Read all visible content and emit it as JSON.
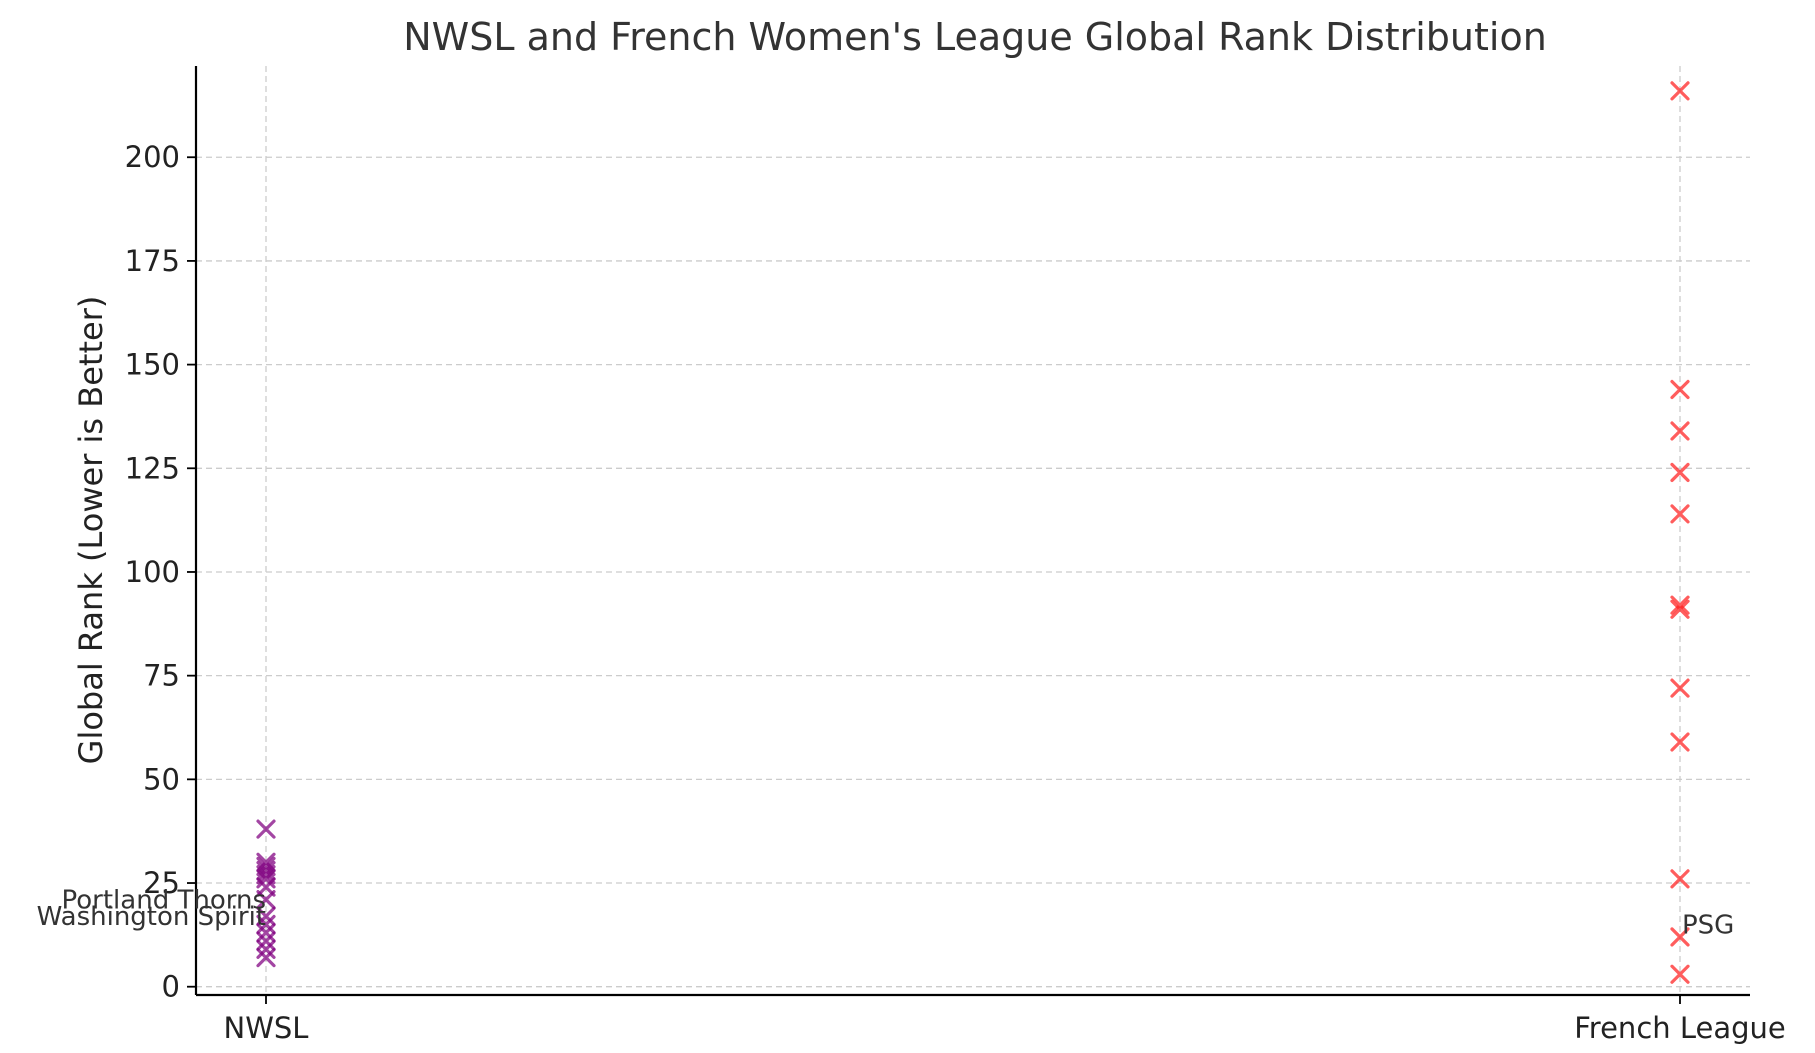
{
  "chart_data": {
    "type": "scatter",
    "title": "NWSL and French Women's League Global Rank Distribution",
    "xlabel": "",
    "ylabel": "Global Rank (Lower is Better)",
    "categories": [
      "NWSL",
      "French League"
    ],
    "ylim": [
      -2,
      222
    ],
    "yticks": [
      0,
      25,
      50,
      75,
      100,
      125,
      150,
      175,
      200
    ],
    "grid": true,
    "marker": "x",
    "series": [
      {
        "category": "NWSL",
        "color": "#800080",
        "values": [
          7,
          9,
          11,
          13,
          15,
          17,
          21,
          24,
          26,
          27,
          28,
          29,
          30,
          38
        ]
      },
      {
        "category": "French League",
        "color": "#ff2020",
        "values": [
          3,
          12,
          26,
          59,
          72,
          91,
          92,
          114,
          124,
          134,
          144,
          216
        ]
      }
    ],
    "annotations": [
      {
        "text": "Portland Thorns",
        "category": "NWSL",
        "y": 21,
        "align": "end"
      },
      {
        "text": "Washington Spirit",
        "category": "NWSL",
        "y": 17,
        "align": "end"
      },
      {
        "text": "PSG",
        "category": "French League",
        "y": 15,
        "align": "start"
      }
    ]
  }
}
